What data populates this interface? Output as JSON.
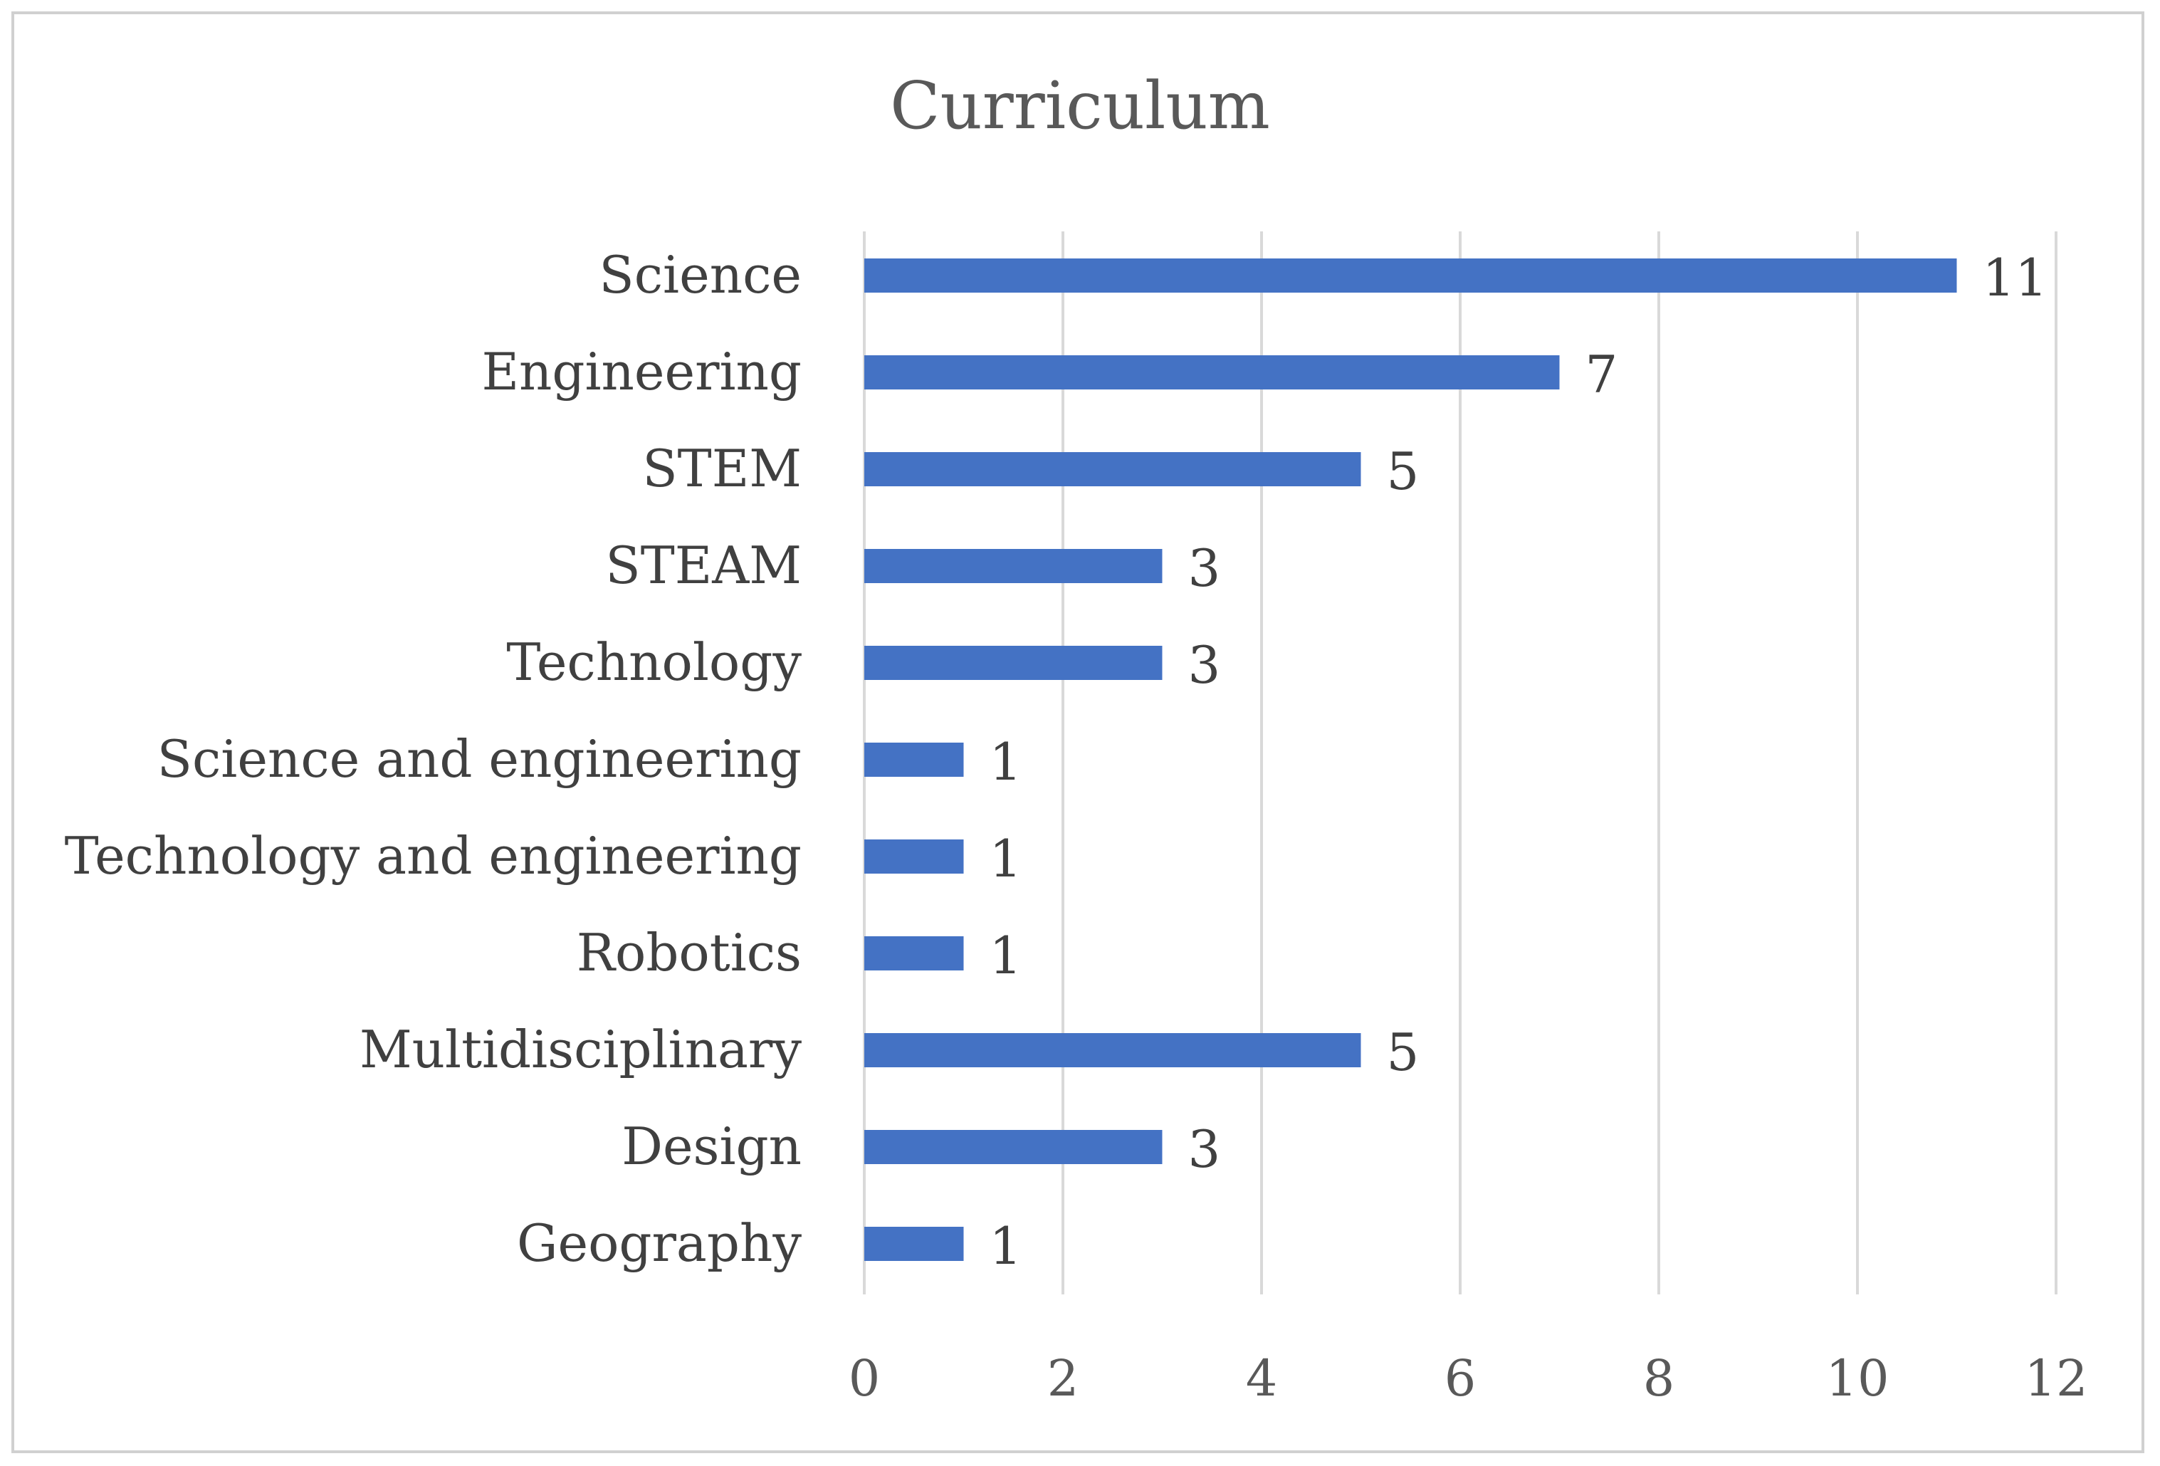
{
  "chart_data": {
    "type": "bar",
    "orientation": "horizontal",
    "title": "Curriculum",
    "categories": [
      "Science",
      "Engineering",
      "STEM",
      "STEAM",
      "Technology",
      "Science and engineering",
      "Technology and engineering",
      "Robotics",
      "Multidisciplinary",
      "Design",
      "Geography"
    ],
    "values": [
      11,
      7,
      5,
      3,
      3,
      1,
      1,
      1,
      5,
      3,
      1
    ],
    "data_labels": [
      "11",
      "7",
      "5",
      "3",
      "3",
      "1",
      "1",
      "1",
      "5",
      "3",
      "1"
    ],
    "xlim": [
      0,
      12
    ],
    "x_ticks": [
      "0",
      "2",
      "4",
      "6",
      "8",
      "10",
      "12"
    ],
    "xlabel": "",
    "ylabel": "",
    "grid": "vertical",
    "legend": "none",
    "bar_color": "#4472C4",
    "grid_color": "#d9d9d9"
  }
}
